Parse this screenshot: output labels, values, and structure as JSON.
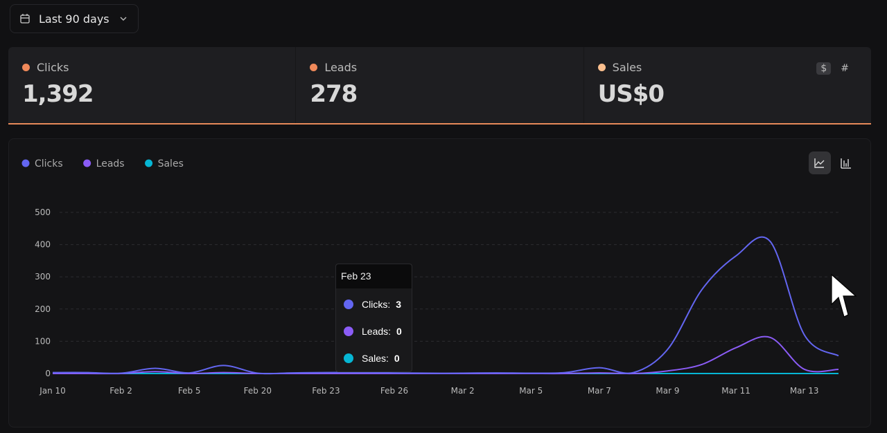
{
  "filter": {
    "label": "Last 90 days"
  },
  "stats": [
    {
      "label": "Clicks",
      "value": "1,392",
      "color": "#f0895a"
    },
    {
      "label": "Leads",
      "value": "278",
      "color": "#f0895a"
    },
    {
      "label": "Sales",
      "value": "US$0",
      "color": "#fcc08f"
    }
  ],
  "currency_toggle": [
    "$",
    "#"
  ],
  "chart_data": {
    "type": "line",
    "categories": [
      "Jan 10",
      null,
      "Feb 2",
      null,
      "Feb 5",
      null,
      "Feb 20",
      null,
      "Feb 23",
      null,
      "Feb 26",
      null,
      "Mar 2",
      null,
      "Mar 5",
      null,
      "Mar 7",
      null,
      "Mar 9",
      null,
      "Mar 11",
      null,
      "Mar 13",
      null
    ],
    "series": [
      {
        "name": "Clicks",
        "color": "#6366f1",
        "values": [
          3,
          3,
          1,
          16,
          2,
          25,
          1,
          2,
          3,
          3,
          2,
          1,
          1,
          2,
          1,
          3,
          18,
          3,
          75,
          260,
          365,
          410,
          120,
          55
        ]
      },
      {
        "name": "Leads",
        "color": "#8b5cf6",
        "values": [
          0,
          0,
          0,
          6,
          0,
          3,
          0,
          0,
          0,
          0,
          0,
          0,
          0,
          0,
          0,
          0,
          2,
          0,
          8,
          28,
          80,
          112,
          13,
          13
        ]
      },
      {
        "name": "Sales",
        "color": "#06b6d4",
        "values": [
          0,
          0,
          0,
          0,
          0,
          0,
          0,
          0,
          0,
          0,
          0,
          0,
          0,
          0,
          0,
          0,
          0,
          0,
          0,
          0,
          0,
          0,
          0,
          0
        ]
      }
    ],
    "ylim": [
      0,
      500
    ],
    "yticks": [
      0,
      100,
      200,
      300,
      400,
      500
    ],
    "grid": true
  },
  "tooltip": {
    "title": "Feb 23",
    "items": [
      {
        "label": "Clicks:",
        "value": 3
      },
      {
        "label": "Leads:",
        "value": 0
      },
      {
        "label": "Sales:",
        "value": 0
      }
    ]
  }
}
